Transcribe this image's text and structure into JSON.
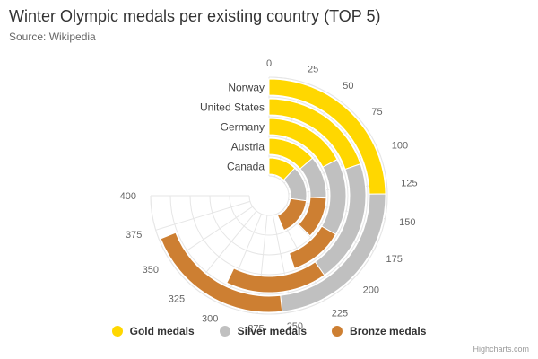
{
  "chart_data": {
    "type": "bar",
    "polar": true,
    "title": "Winter Olympic medals per existing country (TOP 5)",
    "subtitle": "Source: Wikipedia",
    "categories": [
      "Norway",
      "United States",
      "Germany",
      "Austria",
      "Canada"
    ],
    "series": [
      {
        "name": "Gold medals",
        "color": "#ffd700",
        "values": [
          132,
          105,
          92,
          73,
          64
        ]
      },
      {
        "name": "Silver medals",
        "color": "#c0c0c0",
        "values": [
          125,
          110,
          86,
          64,
          81
        ]
      },
      {
        "name": "Bronze medals",
        "color": "#cd7f32",
        "values": [
          111,
          90,
          60,
          62,
          87
        ]
      }
    ],
    "stacked": true,
    "axis": {
      "min": 0,
      "max": 400,
      "ticks": [
        0,
        25,
        50,
        75,
        100,
        125,
        150,
        175,
        200,
        225,
        250,
        275,
        300,
        325,
        350,
        375,
        400
      ],
      "start_angle_deg": 0,
      "end_angle_deg": 270
    },
    "grid": true,
    "legend_position": "bottom-center"
  },
  "credits": "Highcharts.com"
}
